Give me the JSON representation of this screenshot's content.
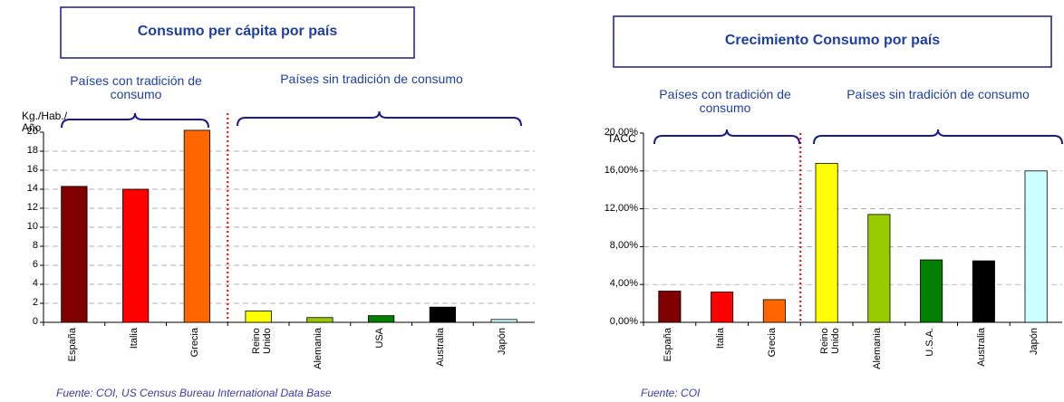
{
  "chart_data": [
    {
      "type": "bar",
      "title": "Consumo per cápita por país",
      "y_label": "Kg./Hab./ Año",
      "groups": [
        "Países con tradición de consumo",
        "Países sin tradición de consumo"
      ],
      "source": "Fuente: COI, US Census Bureau International Data Base",
      "categories": [
        "España",
        "Italia",
        "Grecia",
        "Reino Unido",
        "Alemania",
        "USA",
        "Australia",
        "Japón"
      ],
      "values": [
        14.3,
        14.0,
        20.2,
        1.2,
        0.5,
        0.7,
        1.6,
        0.3
      ],
      "colors": [
        "#800000",
        "#ff0000",
        "#ff6600",
        "#ffff00",
        "#99cc00",
        "#008000",
        "#000000",
        "#ccffff"
      ],
      "ylim": [
        0,
        20
      ],
      "yticks": [
        0,
        2,
        4,
        6,
        8,
        10,
        12,
        14,
        16,
        18,
        20
      ],
      "grid": true
    },
    {
      "type": "bar",
      "title": "Crecimiento Consumo por país",
      "y_label": "TACC",
      "groups": [
        "Países con tradición de consumo",
        "Países sin tradición de consumo"
      ],
      "source": "Fuente: COI",
      "categories": [
        "España",
        "Italia",
        "Grecia",
        "Reino Unido",
        "Alemania",
        "U.S.A.",
        "Australia",
        "Japón"
      ],
      "values": [
        3.3,
        3.2,
        2.4,
        16.8,
        11.4,
        6.6,
        6.5,
        16.0
      ],
      "colors": [
        "#800000",
        "#ff0000",
        "#ff6600",
        "#ffff00",
        "#99cc00",
        "#008000",
        "#000000",
        "#ccffff"
      ],
      "ylim": [
        0,
        20
      ],
      "yticks": [
        {
          "value": 0,
          "label": "0,00%"
        },
        {
          "value": 4,
          "label": "4,00%"
        },
        {
          "value": 8,
          "label": "8,00%"
        },
        {
          "value": 12,
          "label": "12,00%"
        },
        {
          "value": 16,
          "label": "16,00%"
        },
        {
          "value": 20,
          "label": "20,00%"
        }
      ],
      "grid": true
    }
  ]
}
